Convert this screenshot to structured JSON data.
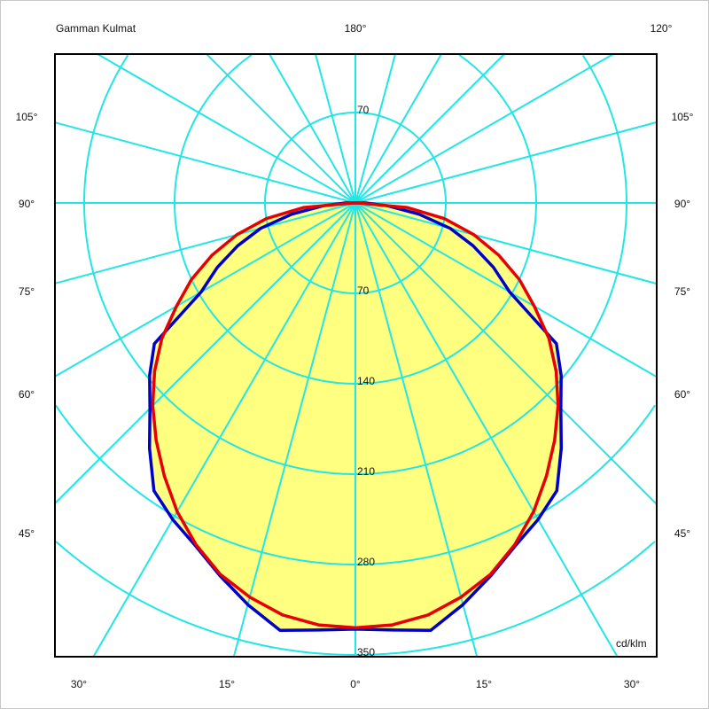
{
  "chart_data": {
    "type": "polar",
    "title": "Gamman Kulmat",
    "unit_label": "cd/klm",
    "radial_range": [
      0,
      420
    ],
    "radial_ticks": [
      70,
      140,
      210,
      280,
      350
    ],
    "radial_tick_labels": [
      "70",
      "140",
      "210",
      "280",
      "350"
    ],
    "upper_tick_label": "70",
    "angle_grid_step_deg": 15,
    "grid": true,
    "colors": {
      "grid": "#22e6e6",
      "fill": "#ffff80",
      "series_1": "#e60000",
      "series_2": "#0000c8",
      "frame": "#000000"
    },
    "angle_labels": {
      "top": [
        "180°",
        "120°"
      ],
      "left": [
        "105°",
        "90°",
        "75°",
        "60°",
        "45°"
      ],
      "right": [
        "105°",
        "90°",
        "75°",
        "60°",
        "45°"
      ],
      "bottom": [
        "30°",
        "15°",
        "0°",
        "15°",
        "30°"
      ]
    },
    "angles_deg": [
      0,
      5,
      10,
      15,
      20,
      25,
      30,
      35,
      40,
      45,
      50,
      55,
      60,
      65,
      70,
      75,
      80,
      85,
      90
    ],
    "series": [
      {
        "color": "#e60000",
        "symmetric": true,
        "values": [
          329,
          328,
          324,
          316,
          306,
          292,
          276,
          258,
          240,
          222,
          203,
          183,
          160,
          140,
          118,
          95,
          70,
          40,
          2
        ]
      },
      {
        "color": "#0000c8",
        "symmetric": true,
        "values": [
          330,
          332,
          336,
          322,
          307,
          293,
          283,
          272,
          248,
          225,
          208,
          190,
          138,
          118,
          97,
          76,
          50,
          25,
          8
        ]
      }
    ]
  }
}
